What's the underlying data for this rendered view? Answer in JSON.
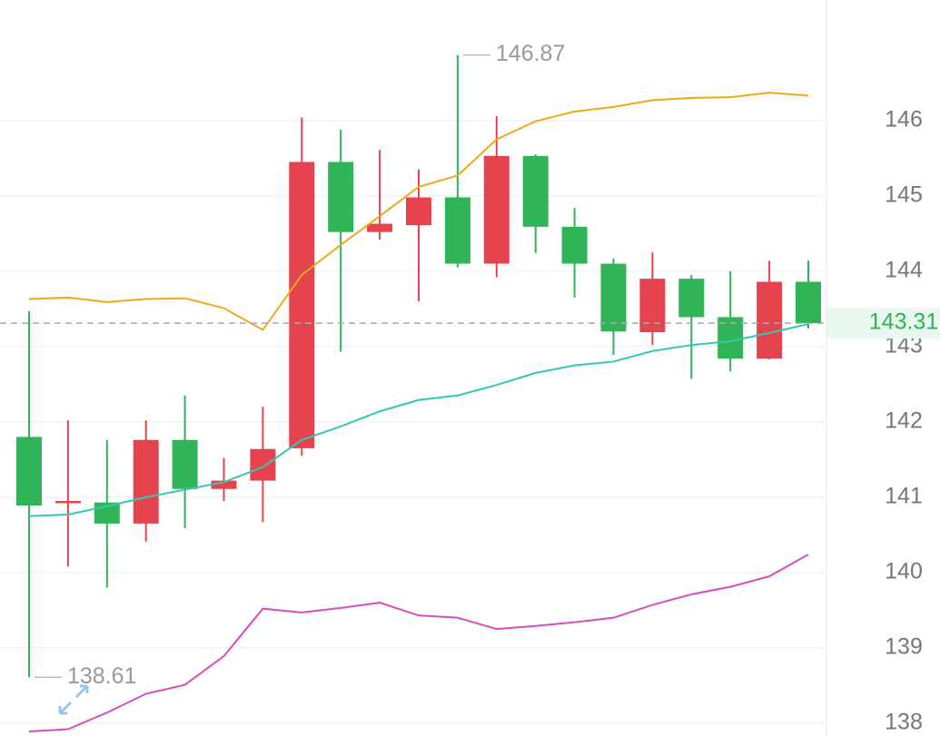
{
  "chart_data": {
    "type": "candlestick",
    "categories": [
      null,
      null,
      null,
      null,
      null,
      null,
      null,
      null,
      null,
      null,
      null,
      null,
      null,
      null,
      null,
      null,
      null,
      null,
      null,
      null,
      null
    ],
    "open": [
      141.8,
      140.92,
      140.93,
      140.65,
      141.76,
      141.11,
      141.22,
      141.65,
      145.45,
      144.52,
      144.61,
      144.98,
      144.1,
      145.53,
      144.59,
      144.1,
      143.19,
      143.9,
      143.39,
      142.84,
      143.86
    ],
    "high": [
      143.47,
      142.02,
      141.76,
      142.02,
      142.35,
      141.52,
      142.2,
      146.04,
      145.88,
      145.61,
      145.35,
      146.87,
      146.06,
      145.55,
      144.84,
      144.17,
      144.25,
      143.95,
      144.0,
      144.14,
      144.14
    ],
    "low": [
      138.61,
      140.08,
      139.8,
      140.41,
      140.59,
      140.95,
      140.67,
      141.55,
      142.93,
      144.42,
      143.6,
      144.05,
      143.92,
      144.24,
      143.65,
      142.89,
      143.02,
      142.57,
      142.67,
      142.83,
      143.24
    ],
    "close": [
      140.89,
      140.95,
      140.65,
      141.76,
      141.11,
      141.22,
      141.64,
      145.45,
      144.52,
      144.63,
      144.98,
      144.1,
      145.53,
      144.59,
      144.1,
      143.2,
      143.9,
      143.39,
      142.84,
      143.86,
      143.31
    ],
    "up_color": "#e5444f",
    "down_color": "#2fb457",
    "series": [
      {
        "color": "#f0a81a",
        "values": [
          143.63,
          143.65,
          143.59,
          143.63,
          143.64,
          143.51,
          143.22,
          143.95,
          144.35,
          144.73,
          145.12,
          145.27,
          145.75,
          145.99,
          146.12,
          146.18,
          146.27,
          146.3,
          146.31,
          146.37,
          146.33
        ]
      },
      {
        "color": "#33c9b0",
        "values": [
          140.75,
          140.77,
          140.88,
          141.0,
          141.1,
          141.2,
          141.4,
          141.76,
          141.94,
          142.14,
          142.29,
          142.35,
          142.49,
          142.65,
          142.75,
          142.8,
          142.94,
          143.02,
          143.07,
          143.18,
          143.3
        ]
      },
      {
        "color": "#d84cc0",
        "values": [
          137.89,
          137.92,
          138.14,
          138.39,
          138.51,
          138.89,
          139.52,
          139.47,
          139.53,
          139.6,
          139.43,
          139.4,
          139.25,
          139.29,
          139.34,
          139.4,
          139.57,
          139.71,
          139.81,
          139.95,
          140.24
        ]
      }
    ],
    "high_annotation": 146.87,
    "low_annotation": 138.61,
    "last_price": 143.31,
    "ylim": [
      137.83,
      147.6
    ],
    "yticks": [
      138,
      139,
      140,
      141,
      142,
      143,
      144,
      145,
      146
    ],
    "grid": true
  }
}
